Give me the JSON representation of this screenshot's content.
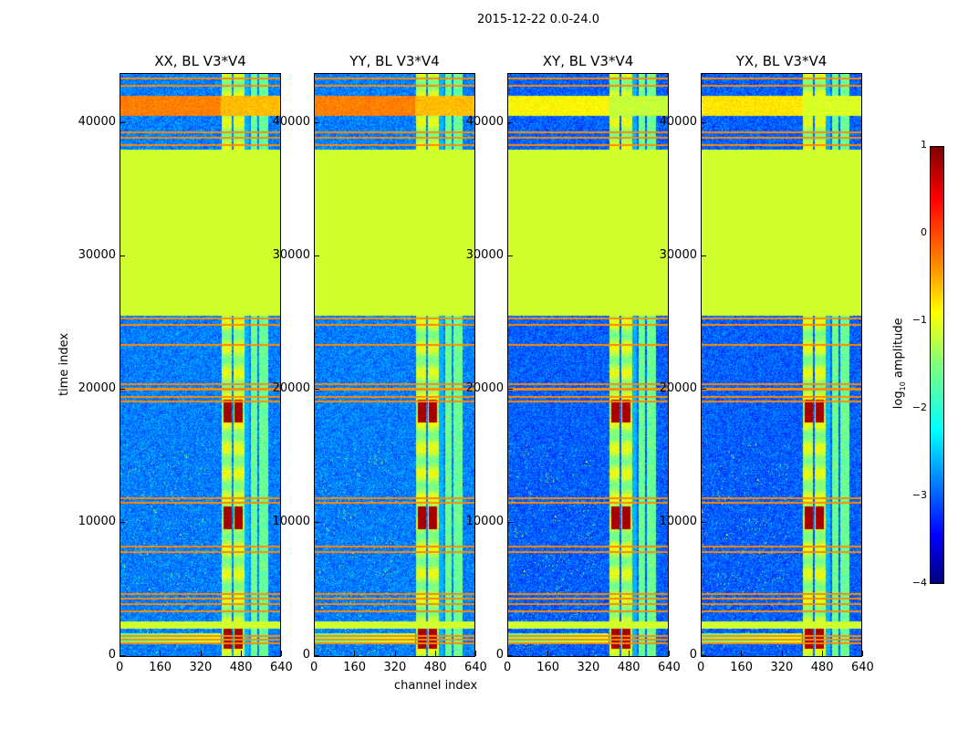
{
  "chart_data": {
    "type": "heatmap",
    "title": "2015-12-22 0.0-24.0",
    "xlabel": "channel index",
    "ylabel": "time index",
    "xlim": [
      0,
      640
    ],
    "ylim": [
      0,
      43800
    ],
    "xticks": [
      "0",
      "160",
      "320",
      "480",
      "640"
    ],
    "yticks": [
      "0",
      "10000",
      "20000",
      "30000",
      "40000"
    ],
    "panels": [
      {
        "title": "XX, BL V3*V4",
        "top_band_level": -0.4
      },
      {
        "title": "YY, BL V3*V4",
        "top_band_level": -0.4
      },
      {
        "title": "XY, BL V3*V4",
        "top_band_level": -1.0
      },
      {
        "title": "YX, BL V3*V4",
        "top_band_level": -0.9
      }
    ],
    "features": {
      "flagged_block_time": [
        25500,
        38000
      ],
      "flagged_level": -1.1,
      "top_band_time": [
        40500,
        42000
      ],
      "bright_channel_ranges": [
        [
          405,
          445
        ],
        [
          450,
          495
        ],
        [
          520,
          545
        ],
        [
          555,
          590
        ]
      ],
      "saturated_time_ranges": [
        [
          500,
          2000
        ],
        [
          9500,
          11200
        ],
        [
          17500,
          19200
        ]
      ],
      "horizontal_line_times": [
        900,
        1200,
        1500,
        3300,
        3900,
        4300,
        4600,
        7800,
        8200,
        11500,
        11800,
        19100,
        19400,
        20000,
        20400,
        23300,
        24800,
        25300,
        38300,
        38900,
        39300,
        42800,
        43300
      ]
    },
    "colorbar": {
      "label": "log10 amplitude",
      "label_main": "log",
      "label_sub": "10",
      "label_rest": " amplitude",
      "range": [
        -4,
        1
      ],
      "ticks": [
        "1",
        "0",
        "−1",
        "−2",
        "−3",
        "−4"
      ],
      "colormap": "jet"
    }
  }
}
